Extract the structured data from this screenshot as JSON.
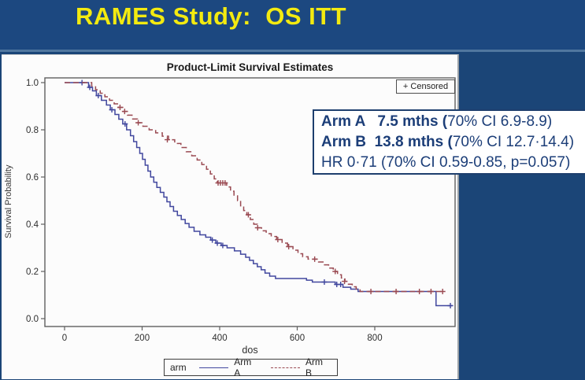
{
  "slide": {
    "title": "RAMES Study:  OS ITT"
  },
  "chart": {
    "title": "Product-Limit Survival Estimates",
    "censored_legend": "+ Censored",
    "x_axis": {
      "label": "dos"
    },
    "y_axis": {
      "label": "Survival Probability"
    },
    "legend": {
      "title": "arm",
      "entries": [
        {
          "label": "Arm A",
          "style": "solid",
          "color": "#41479E"
        },
        {
          "label": "Arm B",
          "style": "dashed",
          "color": "#9A4A52"
        }
      ]
    }
  },
  "annotation": {
    "line1_bold": "Arm A   7.5 mths (",
    "line1_rest": "70% CI 6.9-8.9)",
    "line2_bold": "Arm B  13.8 mths (",
    "line2_rest": "70% CI 12.7·14.4)",
    "line3": "HR 0·71 (70% CI 0.59-0.85, p=0.057)"
  },
  "chart_data": {
    "type": "line",
    "subtype": "kaplan-meier-step",
    "title": "Product-Limit Survival Estimates",
    "xlabel": "dos",
    "ylabel": "Survival Probability",
    "xlim": [
      -50,
      1007
    ],
    "ylim": [
      0,
      1.02
    ],
    "x_ticks": [
      0,
      200,
      400,
      600,
      800
    ],
    "y_ticks": [
      1.0,
      0.8,
      0.6,
      0.4,
      0.2,
      0.0
    ],
    "grid": false,
    "legend_position": "bottom",
    "stats": {
      "hazard_ratio": "0·71",
      "hr_ci": "70% CI 0.59-0.85",
      "p_value": "0.057"
    },
    "series": [
      {
        "name": "Arm A",
        "median": "7.5 mths",
        "median_ci": "70% CI 6.9-8.9",
        "color": "#41479E",
        "dash": "solid",
        "points": [
          [
            0,
            1.0
          ],
          [
            55,
            1.0
          ],
          [
            62,
            0.98
          ],
          [
            72,
            0.965
          ],
          [
            82,
            0.945
          ],
          [
            95,
            0.925
          ],
          [
            108,
            0.905
          ],
          [
            118,
            0.885
          ],
          [
            130,
            0.865
          ],
          [
            140,
            0.845
          ],
          [
            150,
            0.825
          ],
          [
            160,
            0.8
          ],
          [
            170,
            0.775
          ],
          [
            178,
            0.75
          ],
          [
            186,
            0.725
          ],
          [
            194,
            0.7
          ],
          [
            201,
            0.675
          ],
          [
            208,
            0.65
          ],
          [
            215,
            0.625
          ],
          [
            222,
            0.6
          ],
          [
            230,
            0.578
          ],
          [
            238,
            0.556
          ],
          [
            247,
            0.535
          ],
          [
            256,
            0.515
          ],
          [
            264,
            0.495
          ],
          [
            272,
            0.475
          ],
          [
            281,
            0.455
          ],
          [
            291,
            0.437
          ],
          [
            301,
            0.42
          ],
          [
            311,
            0.403
          ],
          [
            321,
            0.387
          ],
          [
            334,
            0.37
          ],
          [
            349,
            0.355
          ],
          [
            364,
            0.345
          ],
          [
            377,
            0.333
          ],
          [
            390,
            0.32
          ],
          [
            404,
            0.31
          ],
          [
            419,
            0.3
          ],
          [
            438,
            0.287
          ],
          [
            454,
            0.273
          ],
          [
            467,
            0.26
          ],
          [
            477,
            0.247
          ],
          [
            487,
            0.233
          ],
          [
            497,
            0.22
          ],
          [
            507,
            0.207
          ],
          [
            517,
            0.193
          ],
          [
            529,
            0.18
          ],
          [
            544,
            0.17
          ],
          [
            624,
            0.163
          ],
          [
            639,
            0.155
          ],
          [
            698,
            0.145
          ],
          [
            718,
            0.133
          ],
          [
            738,
            0.125
          ],
          [
            757,
            0.115
          ],
          [
            956,
            0.115
          ],
          [
            958,
            0.055
          ],
          [
            1000,
            0.055
          ]
        ],
        "censors": [
          [
            45,
            1.0
          ],
          [
            65,
            0.98
          ],
          [
            87,
            0.945
          ],
          [
            122,
            0.885
          ],
          [
            156,
            0.825
          ],
          [
            381,
            0.333
          ],
          [
            394,
            0.32
          ],
          [
            408,
            0.31
          ],
          [
            670,
            0.155
          ],
          [
            702,
            0.145
          ],
          [
            712,
            0.145
          ],
          [
            995,
            0.055
          ]
        ]
      },
      {
        "name": "Arm B",
        "median": "13.8 mths",
        "median_ci": "70% CI 12.7·14.4",
        "color": "#9A4A52",
        "dash": "dashed",
        "points": [
          [
            0,
            1.0
          ],
          [
            62,
            1.0
          ],
          [
            70,
            0.985
          ],
          [
            80,
            0.97
          ],
          [
            92,
            0.955
          ],
          [
            104,
            0.94
          ],
          [
            116,
            0.925
          ],
          [
            128,
            0.91
          ],
          [
            139,
            0.895
          ],
          [
            150,
            0.878
          ],
          [
            162,
            0.862
          ],
          [
            174,
            0.846
          ],
          [
            188,
            0.83
          ],
          [
            202,
            0.815
          ],
          [
            218,
            0.8
          ],
          [
            235,
            0.787
          ],
          [
            252,
            0.773
          ],
          [
            268,
            0.758
          ],
          [
            284,
            0.742
          ],
          [
            300,
            0.725
          ],
          [
            314,
            0.707
          ],
          [
            328,
            0.69
          ],
          [
            342,
            0.672
          ],
          [
            354,
            0.653
          ],
          [
            366,
            0.633
          ],
          [
            376,
            0.613
          ],
          [
            386,
            0.592
          ],
          [
            394,
            0.575
          ],
          [
            418,
            0.558
          ],
          [
            428,
            0.54
          ],
          [
            437,
            0.52
          ],
          [
            446,
            0.5
          ],
          [
            454,
            0.478
          ],
          [
            462,
            0.458
          ],
          [
            470,
            0.44
          ],
          [
            479,
            0.42
          ],
          [
            488,
            0.4
          ],
          [
            497,
            0.385
          ],
          [
            508,
            0.372
          ],
          [
            520,
            0.36
          ],
          [
            533,
            0.348
          ],
          [
            547,
            0.335
          ],
          [
            561,
            0.32
          ],
          [
            575,
            0.305
          ],
          [
            589,
            0.29
          ],
          [
            602,
            0.275
          ],
          [
            614,
            0.262
          ],
          [
            628,
            0.252
          ],
          [
            655,
            0.24
          ],
          [
            668,
            0.228
          ],
          [
            681,
            0.214
          ],
          [
            693,
            0.2
          ],
          [
            704,
            0.186
          ],
          [
            714,
            0.172
          ],
          [
            723,
            0.158
          ],
          [
            732,
            0.146
          ],
          [
            742,
            0.135
          ],
          [
            752,
            0.125
          ],
          [
            762,
            0.115
          ],
          [
            975,
            0.115
          ]
        ],
        "censors": [
          [
            143,
            0.895
          ],
          [
            155,
            0.878
          ],
          [
            190,
            0.83
          ],
          [
            265,
            0.758
          ],
          [
            396,
            0.575
          ],
          [
            402,
            0.575
          ],
          [
            408,
            0.575
          ],
          [
            414,
            0.575
          ],
          [
            474,
            0.44
          ],
          [
            498,
            0.385
          ],
          [
            550,
            0.335
          ],
          [
            578,
            0.305
          ],
          [
            645,
            0.252
          ],
          [
            698,
            0.2
          ],
          [
            722,
            0.158
          ],
          [
            790,
            0.115
          ],
          [
            855,
            0.115
          ],
          [
            915,
            0.115
          ],
          [
            945,
            0.115
          ],
          [
            975,
            0.115
          ]
        ]
      }
    ]
  }
}
